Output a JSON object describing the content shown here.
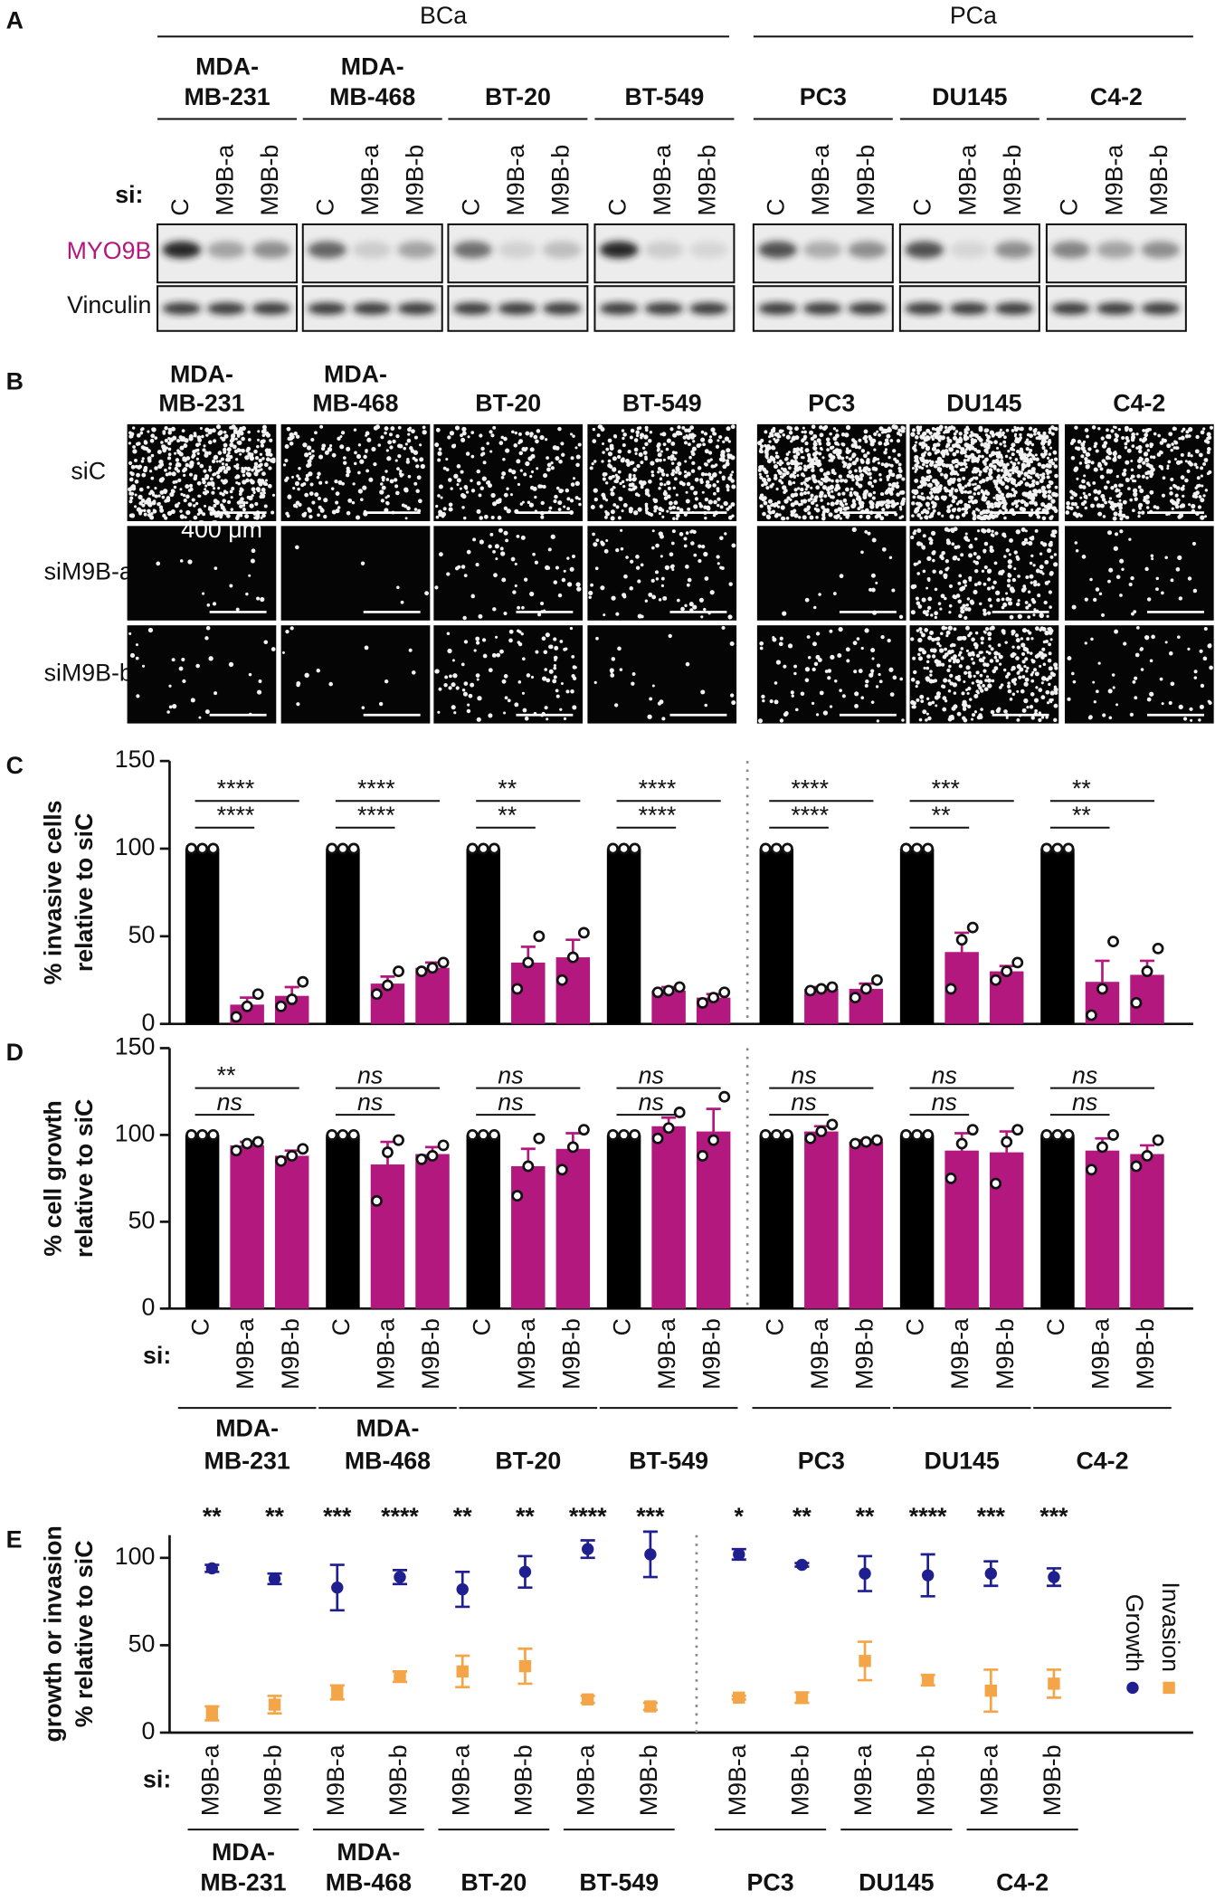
{
  "panel_a": {
    "label": "A",
    "cancer_types": [
      "BCa",
      "PCa"
    ],
    "cell_lines": [
      [
        "MDA-",
        "MB-231"
      ],
      [
        "MDA-",
        "MB-468"
      ],
      [
        "BT-20"
      ],
      [
        "BT-549"
      ],
      [
        "PC3"
      ],
      [
        "DU145"
      ],
      [
        "C4-2"
      ]
    ],
    "si_label": "si:",
    "lanes": [
      "C",
      "M9B-a",
      "M9B-b"
    ],
    "rows": [
      "MYO9B",
      "Vinculin"
    ]
  },
  "panel_b": {
    "label": "B",
    "cell_lines": [
      [
        "MDA-",
        "MB-231"
      ],
      [
        "MDA-",
        "MB-468"
      ],
      [
        "BT-20"
      ],
      [
        "BT-549"
      ],
      [
        "PC3"
      ],
      [
        "DU145"
      ],
      [
        "C4-2"
      ]
    ],
    "rows": [
      "siC",
      "siM9B-a",
      "siM9B-b"
    ],
    "scale_bar": "400 μm"
  },
  "chart_data": [
    {
      "type": "bar",
      "panel_label": "C",
      "ylabel": [
        "% invasive cells",
        "relative to siC"
      ],
      "ylim": [
        0,
        150
      ],
      "yticks": [
        0,
        50,
        100,
        150
      ],
      "series": [
        {
          "name": "C",
          "color": "#000000",
          "values": [
            100,
            100,
            100,
            100,
            100,
            100,
            100
          ],
          "points": [
            [
              100,
              100,
              100
            ],
            [
              100,
              100,
              100
            ],
            [
              100,
              100,
              100
            ],
            [
              100,
              100,
              100
            ],
            [
              100,
              100,
              100
            ],
            [
              100,
              100,
              100
            ],
            [
              100,
              100,
              100
            ]
          ]
        },
        {
          "name": "M9B-a",
          "color": "#b3187f",
          "values": [
            11,
            23,
            35,
            19,
            20,
            41,
            24
          ],
          "errors": [
            4,
            4,
            9,
            2,
            1,
            11,
            12
          ],
          "points": [
            [
              4,
              10,
              17
            ],
            [
              17,
              22,
              30
            ],
            [
              20,
              35,
              50
            ],
            [
              18,
              19,
              21
            ],
            [
              19,
              20,
              21
            ],
            [
              20,
              48,
              55
            ],
            [
              5,
              20,
              47
            ]
          ]
        },
        {
          "name": "M9B-b",
          "color": "#b3187f",
          "values": [
            16,
            32,
            38,
            15,
            20,
            30,
            28
          ],
          "errors": [
            5,
            3,
            10,
            2,
            3,
            3,
            8
          ],
          "points": [
            [
              10,
              14,
              24
            ],
            [
              30,
              32,
              35
            ],
            [
              25,
              38,
              52
            ],
            [
              12,
              15,
              18
            ],
            [
              15,
              20,
              25
            ],
            [
              25,
              30,
              35
            ],
            [
              12,
              30,
              43
            ]
          ]
        }
      ],
      "significance": [
        [
          "****",
          "****"
        ],
        [
          "****",
          "****"
        ],
        [
          "**",
          "**"
        ],
        [
          "****",
          "****"
        ],
        [
          "****",
          "****"
        ],
        [
          "***",
          "**"
        ],
        [
          "**",
          "**"
        ]
      ]
    },
    {
      "type": "bar",
      "panel_label": "D",
      "ylabel": [
        "% cell growth",
        "relative to siC"
      ],
      "ylim": [
        0,
        150
      ],
      "yticks": [
        0,
        50,
        100,
        150
      ],
      "x_prefix": "si:",
      "categories": [
        [
          "MDA-",
          "MB-231"
        ],
        [
          "MDA-",
          "MB-468"
        ],
        [
          "BT-20"
        ],
        [
          "BT-549"
        ],
        [
          "PC3"
        ],
        [
          "DU145"
        ],
        [
          "C4-2"
        ]
      ],
      "series": [
        {
          "name": "C",
          "color": "#000000",
          "values": [
            100,
            100,
            100,
            100,
            100,
            100,
            100
          ],
          "points": [
            [
              100,
              100,
              100
            ],
            [
              100,
              100,
              100
            ],
            [
              100,
              100,
              100
            ],
            [
              100,
              100,
              100
            ],
            [
              100,
              100,
              100
            ],
            [
              100,
              100,
              100
            ],
            [
              100,
              100,
              100
            ]
          ]
        },
        {
          "name": "M9B-a",
          "color": "#b3187f",
          "values": [
            94,
            83,
            82,
            105,
            102,
            91,
            91
          ],
          "errors": [
            2,
            13,
            10,
            5,
            3,
            10,
            7
          ],
          "points": [
            [
              91,
              95,
              96
            ],
            [
              62,
              90,
              97
            ],
            [
              65,
              82,
              98
            ],
            [
              98,
              104,
              113
            ],
            [
              98,
              102,
              106
            ],
            [
              75,
              95,
              103
            ],
            [
              80,
              93,
              100
            ]
          ]
        },
        {
          "name": "M9B-b",
          "color": "#b3187f",
          "values": [
            88,
            89,
            92,
            102,
            96,
            90,
            89
          ],
          "errors": [
            3,
            4,
            9,
            13,
            1,
            12,
            5
          ],
          "points": [
            [
              85,
              88,
              92
            ],
            [
              86,
              88,
              94
            ],
            [
              80,
              93,
              103
            ],
            [
              88,
              97,
              122
            ],
            [
              95,
              96,
              97
            ],
            [
              72,
              96,
              103
            ],
            [
              82,
              88,
              97
            ]
          ]
        }
      ],
      "significance": [
        [
          "**",
          "ns"
        ],
        [
          "ns",
          "ns"
        ],
        [
          "ns",
          "ns"
        ],
        [
          "ns",
          "ns"
        ],
        [
          "ns",
          "ns"
        ],
        [
          "ns",
          "ns"
        ],
        [
          "ns",
          "ns"
        ]
      ]
    },
    {
      "type": "errorbar",
      "panel_label": "E",
      "ylabel": [
        "growth or invasion",
        "% relative to siC"
      ],
      "ylim": [
        0,
        113
      ],
      "yticks": [
        0,
        50,
        100
      ],
      "x_prefix": "si:",
      "legend": "right",
      "categories": [
        "M9B-a",
        "M9B-b",
        "M9B-a",
        "M9B-b",
        "M9B-a",
        "M9B-b",
        "M9B-a",
        "M9B-b",
        "M9B-a",
        "M9B-b",
        "M9B-a",
        "M9B-b",
        "M9B-a",
        "M9B-b"
      ],
      "groups": [
        [
          "MDA-",
          "MB-231"
        ],
        [
          "MDA-",
          "MB-468"
        ],
        [
          "BT-20"
        ],
        [
          "BT-549"
        ],
        [
          "PC3"
        ],
        [
          "DU145"
        ],
        [
          "C4-2"
        ]
      ],
      "significance": [
        "**",
        "**",
        "***",
        "****",
        "**",
        "**",
        "****",
        "***",
        "*",
        "**",
        "**",
        "****",
        "***",
        "***"
      ],
      "series": [
        {
          "name": "Growth",
          "color": "#1f1f8f",
          "marker": "circle",
          "values": [
            94,
            88,
            83,
            89,
            82,
            92,
            105,
            102,
            102,
            96,
            91,
            90,
            91,
            89
          ],
          "errors": [
            2,
            3,
            13,
            4,
            10,
            9,
            5,
            13,
            3,
            1,
            10,
            12,
            7,
            5
          ]
        },
        {
          "name": "Invasion",
          "color": "#f4a548",
          "marker": "square",
          "values": [
            11,
            16,
            23,
            32,
            35,
            38,
            19,
            15,
            20,
            20,
            41,
            30,
            24,
            28
          ],
          "errors": [
            4,
            5,
            4,
            3,
            9,
            10,
            2,
            2,
            1,
            3,
            11,
            3,
            12,
            8
          ]
        }
      ]
    }
  ]
}
